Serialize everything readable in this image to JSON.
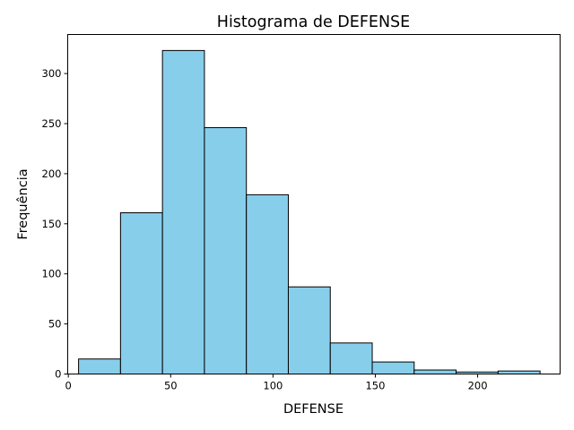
{
  "chart_data": {
    "type": "bar",
    "title": "Histograma de DEFENSE",
    "xlabel": "DEFENSE",
    "ylabel": "Frequência",
    "bin_edges": [
      5,
      25.5,
      46,
      66.5,
      87,
      107.5,
      128,
      148.5,
      169,
      189.5,
      210,
      230.5
    ],
    "values": [
      15,
      161,
      323,
      246,
      179,
      87,
      31,
      12,
      4,
      2,
      3
    ],
    "xlim": [
      -0.3,
      240.3
    ],
    "ylim": [
      0,
      339
    ],
    "xticks": [
      0,
      50,
      100,
      150,
      200
    ],
    "yticks": [
      0,
      50,
      100,
      150,
      200,
      250,
      300
    ],
    "grid": false,
    "bar_color": "#87CEEB",
    "edge_color": "#000000"
  }
}
